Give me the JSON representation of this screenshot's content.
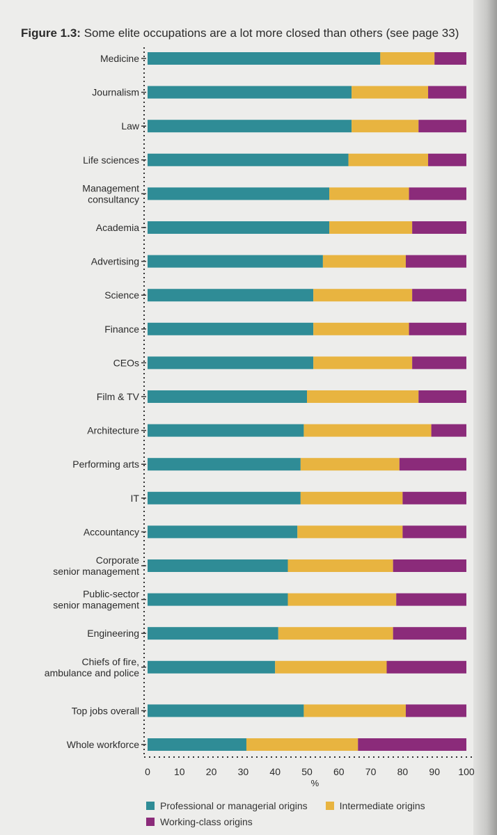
{
  "title_prefix": "Figure 1.3:",
  "title_rest": "Some elite occupations are a lot more closed than others (see page 33)",
  "chart_data": {
    "type": "bar",
    "orientation": "horizontal",
    "stacked": true,
    "categories": [
      "Medicine",
      "Journalism",
      "Law",
      "Life sciences",
      "Management consultancy",
      "Academia",
      "Advertising",
      "Science",
      "Finance",
      "CEOs",
      "Film & TV",
      "Architecture",
      "Performing arts",
      "IT",
      "Accountancy",
      "Corporate senior management",
      "Public-sector senior management",
      "Engineering",
      "Chiefs of fire, ambulance and police",
      "Top jobs overall",
      "Whole workforce"
    ],
    "category_lines": [
      [
        "Medicine"
      ],
      [
        "Journalism"
      ],
      [
        "Law"
      ],
      [
        "Life sciences"
      ],
      [
        "Management",
        "consultancy"
      ],
      [
        "Academia"
      ],
      [
        "Advertising"
      ],
      [
        "Science"
      ],
      [
        "Finance"
      ],
      [
        "CEOs"
      ],
      [
        "Film & TV"
      ],
      [
        "Architecture"
      ],
      [
        "Performing arts"
      ],
      [
        "IT"
      ],
      [
        "Accountancy"
      ],
      [
        "Corporate",
        "senior management"
      ],
      [
        "Public-sector",
        "senior management"
      ],
      [
        "Engineering"
      ],
      [
        "Chiefs of fire,",
        "ambulance and police"
      ],
      [
        "Top jobs overall"
      ],
      [
        "Whole workforce"
      ]
    ],
    "series": [
      {
        "name": "Professional or managerial origins",
        "color": "#2f8c96",
        "values": [
          73,
          64,
          64,
          63,
          57,
          57,
          55,
          52,
          52,
          52,
          50,
          49,
          48,
          48,
          47,
          44,
          44,
          41,
          40,
          49,
          31
        ]
      },
      {
        "name": "Intermediate origins",
        "color": "#e8b440",
        "values": [
          17,
          24,
          21,
          25,
          25,
          26,
          26,
          31,
          30,
          31,
          35,
          40,
          31,
          32,
          33,
          33,
          34,
          36,
          35,
          32,
          35
        ]
      },
      {
        "name": "Working-class origins",
        "color": "#8b2b7a",
        "values": [
          10,
          12,
          15,
          12,
          18,
          17,
          19,
          17,
          18,
          17,
          15,
          11,
          21,
          20,
          20,
          23,
          22,
          23,
          25,
          19,
          34
        ]
      }
    ],
    "x_ticks": [
      "0",
      "10",
      "20",
      "30",
      "40",
      "50",
      "60",
      "70",
      "80",
      "90",
      "100"
    ],
    "xlim": [
      0,
      100
    ],
    "xlabel": "%",
    "legend_position": "bottom",
    "grid": false
  }
}
